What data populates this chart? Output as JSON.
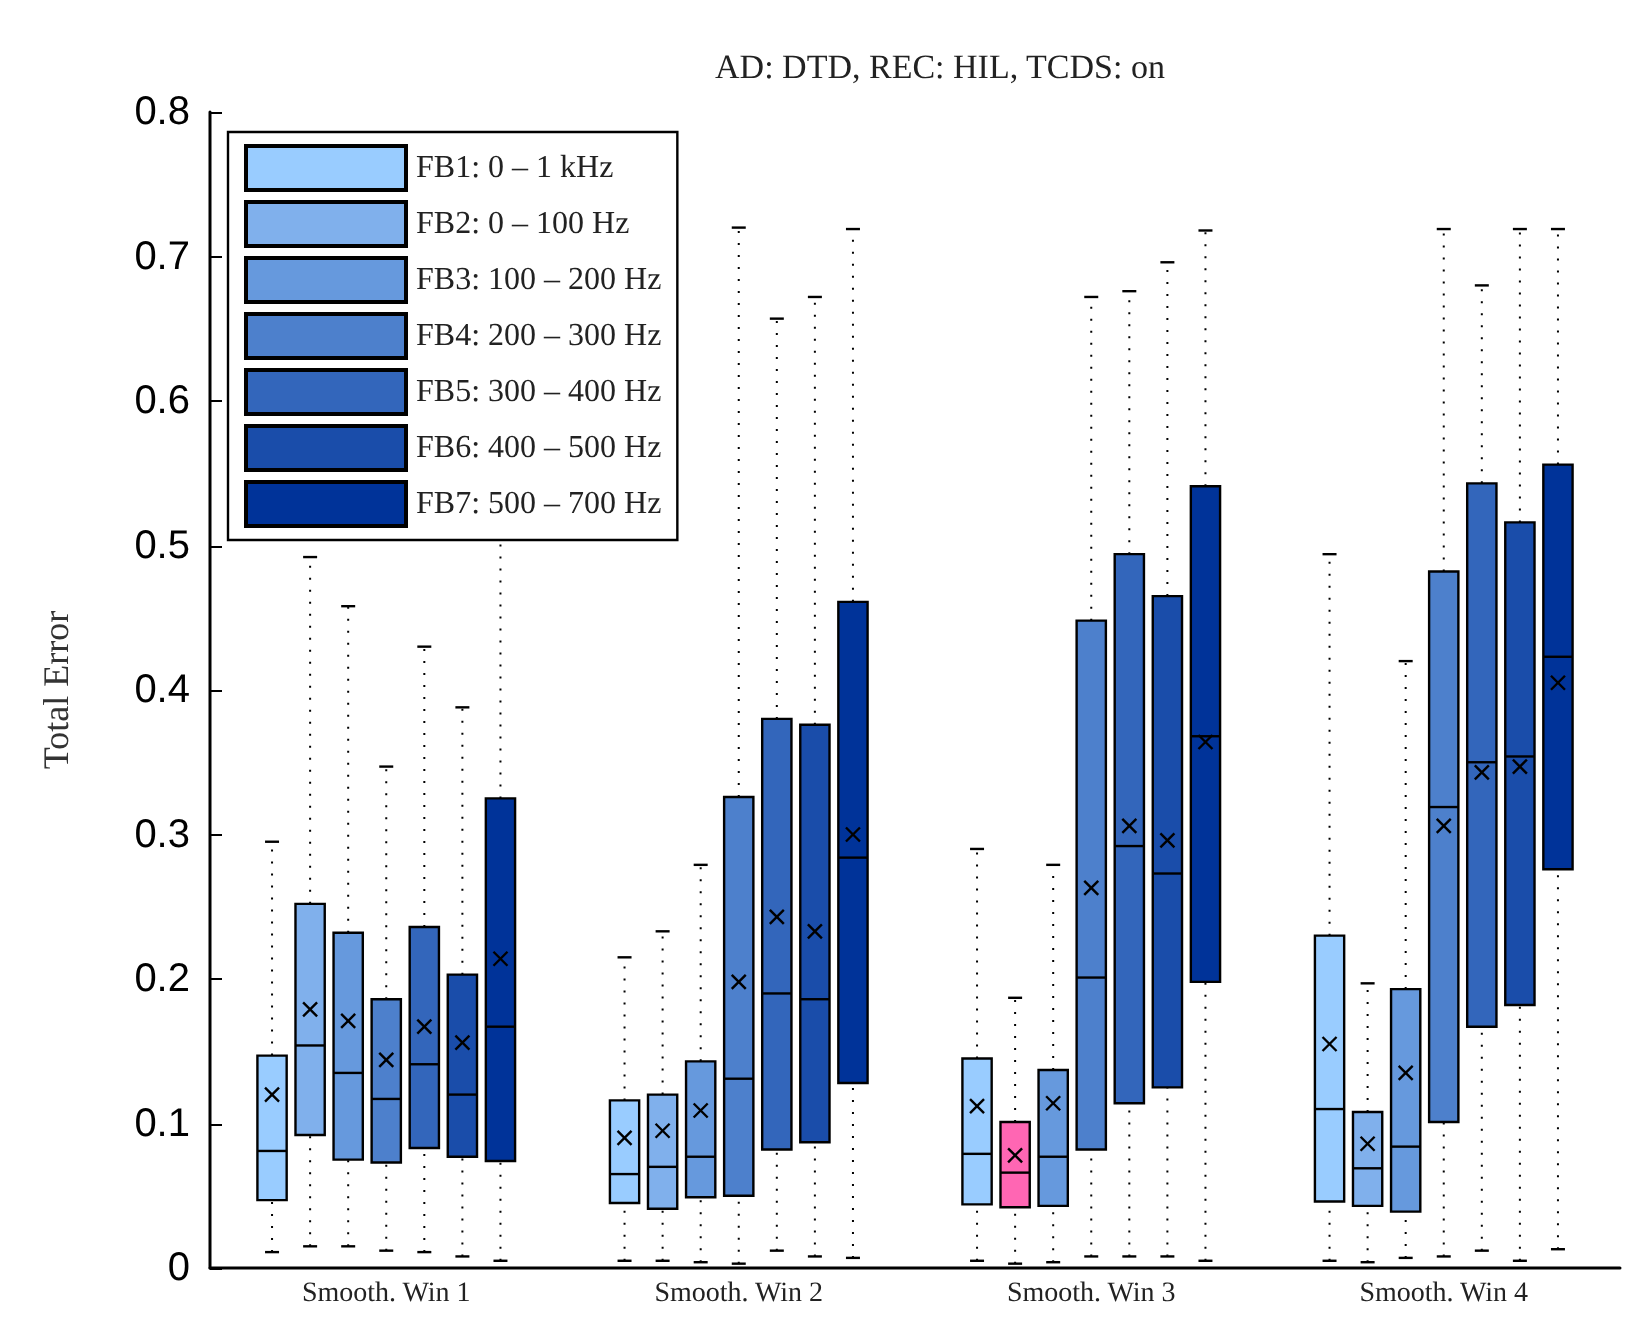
{
  "chart_data": {
    "type": "box",
    "title": "AD: DTD, REC: HIL, TCDS: on",
    "ylabel": "Total Error",
    "categories": [
      "Smooth. Win 1",
      "Smooth. Win 2",
      "Smooth. Win 3",
      "Smooth. Win 4"
    ],
    "ylim": [
      0,
      0.8
    ],
    "yticks": [
      0,
      0.1,
      0.2,
      0.3,
      0.4,
      0.5,
      0.6,
      0.7,
      0.8
    ],
    "grid": false,
    "legend": "top left",
    "marker": "cross",
    "series": [
      {
        "name": "FB1: 0 – 1 kHz",
        "color": "#99ccff",
        "boxes": [
          {
            "low": 0.011,
            "q1": 0.047,
            "median": 0.081,
            "q3": 0.147,
            "high": 0.295,
            "mean": 0.12
          },
          {
            "low": 0.005,
            "q1": 0.045,
            "median": 0.065,
            "q3": 0.116,
            "high": 0.215,
            "mean": 0.09
          },
          {
            "low": 0.005,
            "q1": 0.044,
            "median": 0.079,
            "q3": 0.145,
            "high": 0.29,
            "mean": 0.112
          },
          {
            "low": 0.005,
            "q1": 0.046,
            "median": 0.11,
            "q3": 0.23,
            "high": 0.494,
            "mean": 0.155
          }
        ]
      },
      {
        "name": "FB2: 0 – 100 Hz",
        "color": "#80b0ec",
        "colors": [
          "#80b0ec",
          "#80b0ec",
          "#ff66b3",
          "#80b0ec"
        ],
        "boxes": [
          {
            "low": 0.015,
            "q1": 0.092,
            "median": 0.154,
            "q3": 0.252,
            "high": 0.492,
            "mean": 0.179
          },
          {
            "low": 0.005,
            "q1": 0.041,
            "median": 0.07,
            "q3": 0.12,
            "high": 0.233,
            "mean": 0.095
          },
          {
            "low": 0.003,
            "q1": 0.042,
            "median": 0.066,
            "q3": 0.101,
            "high": 0.187,
            "mean": 0.078
          },
          {
            "low": 0.004,
            "q1": 0.043,
            "median": 0.069,
            "q3": 0.108,
            "high": 0.197,
            "mean": 0.086
          }
        ]
      },
      {
        "name": "FB3: 100 – 200 Hz",
        "color": "#6699dd",
        "boxes": [
          {
            "low": 0.015,
            "q1": 0.075,
            "median": 0.135,
            "q3": 0.232,
            "high": 0.458,
            "mean": 0.171
          },
          {
            "low": 0.004,
            "q1": 0.049,
            "median": 0.077,
            "q3": 0.143,
            "high": 0.279,
            "mean": 0.109
          },
          {
            "low": 0.004,
            "q1": 0.043,
            "median": 0.077,
            "q3": 0.137,
            "high": 0.279,
            "mean": 0.114
          },
          {
            "low": 0.007,
            "q1": 0.039,
            "median": 0.084,
            "q3": 0.193,
            "high": 0.42,
            "mean": 0.135
          }
        ]
      },
      {
        "name": "FB4: 200 – 300 Hz",
        "color": "#4d80cc",
        "boxes": [
          {
            "low": 0.012,
            "q1": 0.073,
            "median": 0.117,
            "q3": 0.186,
            "high": 0.347,
            "mean": 0.144
          },
          {
            "low": 0.003,
            "q1": 0.05,
            "median": 0.131,
            "q3": 0.326,
            "high": 0.72,
            "mean": 0.198
          },
          {
            "low": 0.008,
            "q1": 0.082,
            "median": 0.201,
            "q3": 0.448,
            "high": 0.672,
            "mean": 0.263
          },
          {
            "low": 0.008,
            "q1": 0.101,
            "median": 0.319,
            "q3": 0.482,
            "high": 0.719,
            "mean": 0.306
          }
        ]
      },
      {
        "name": "FB5: 300 – 400 Hz",
        "color": "#3366bb",
        "boxes": [
          {
            "low": 0.011,
            "q1": 0.083,
            "median": 0.141,
            "q3": 0.236,
            "high": 0.43,
            "mean": 0.167
          },
          {
            "low": 0.012,
            "q1": 0.082,
            "median": 0.19,
            "q3": 0.38,
            "high": 0.657,
            "mean": 0.243
          },
          {
            "low": 0.008,
            "q1": 0.114,
            "median": 0.292,
            "q3": 0.494,
            "high": 0.676,
            "mean": 0.306
          },
          {
            "low": 0.012,
            "q1": 0.167,
            "median": 0.35,
            "q3": 0.543,
            "high": 0.68,
            "mean": 0.343
          }
        ]
      },
      {
        "name": "FB6: 400 – 500 Hz",
        "color": "#1a4daa",
        "boxes": [
          {
            "low": 0.008,
            "q1": 0.077,
            "median": 0.12,
            "q3": 0.203,
            "high": 0.388,
            "mean": 0.156
          },
          {
            "low": 0.008,
            "q1": 0.087,
            "median": 0.186,
            "q3": 0.376,
            "high": 0.672,
            "mean": 0.233
          },
          {
            "low": 0.008,
            "q1": 0.125,
            "median": 0.273,
            "q3": 0.465,
            "high": 0.696,
            "mean": 0.296
          },
          {
            "low": 0.005,
            "q1": 0.182,
            "median": 0.354,
            "q3": 0.516,
            "high": 0.719,
            "mean": 0.347
          }
        ]
      },
      {
        "name": "FB7: 500 – 700 Hz",
        "color": "#003399",
        "boxes": [
          {
            "low": 0.005,
            "q1": 0.074,
            "median": 0.167,
            "q3": 0.325,
            "high": 0.72,
            "mean": 0.214
          },
          {
            "low": 0.007,
            "q1": 0.128,
            "median": 0.284,
            "q3": 0.461,
            "high": 0.719,
            "mean": 0.3
          },
          {
            "low": 0.005,
            "q1": 0.198,
            "median": 0.368,
            "q3": 0.541,
            "high": 0.718,
            "mean": 0.364
          },
          {
            "low": 0.013,
            "q1": 0.276,
            "median": 0.423,
            "q3": 0.556,
            "high": 0.719,
            "mean": 0.405
          }
        ]
      }
    ]
  }
}
